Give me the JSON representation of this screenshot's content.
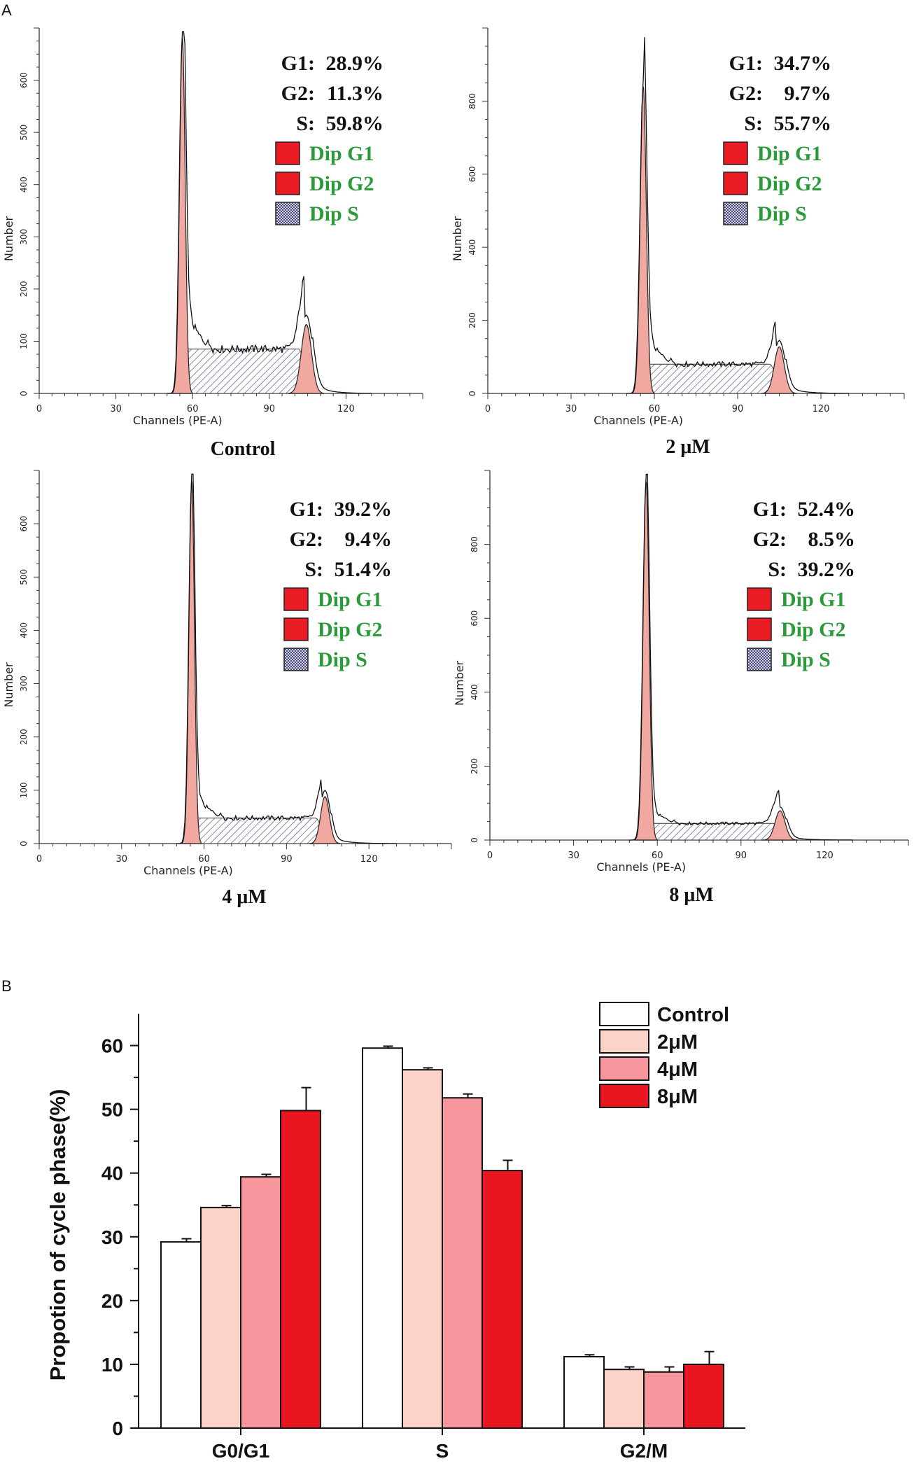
{
  "panel_labels": {
    "a": "A",
    "b": "B"
  },
  "chart_data": [
    {
      "type": "histogram",
      "condition_label": "Control",
      "xlabel": "Channels (PE-A)",
      "ylabel": "Number",
      "xlim": [
        0,
        150
      ],
      "xticks": [
        0,
        30,
        60,
        90,
        120
      ],
      "ylim": [
        0,
        700
      ],
      "yticks": [
        0,
        100,
        200,
        300,
        400,
        500,
        600
      ],
      "annotations": [
        {
          "label": "G1:",
          "value": "28.9%"
        },
        {
          "label": "G2:",
          "value": "11.3%"
        },
        {
          "label": "S:",
          "value": "59.8%"
        }
      ],
      "legend": [
        "Dip G1",
        "Dip G2",
        "Dip S"
      ],
      "peaks": {
        "g1_center": 56,
        "g1_sigma": 1.1,
        "g1_height": 680,
        "s_start": 57,
        "s_end": 103,
        "s_height": 85,
        "g2_center": 104.5,
        "g2_sigma": 2.0,
        "g2_height": 150
      }
    },
    {
      "type": "histogram",
      "condition_label": "2 μM",
      "xlabel": "Channels (PE-A)",
      "ylabel": "Number",
      "xlim": [
        0,
        150
      ],
      "xticks": [
        0,
        30,
        60,
        90,
        120
      ],
      "ylim": [
        0,
        1000
      ],
      "yticks": [
        0,
        200,
        400,
        600,
        800
      ],
      "annotations": [
        {
          "label": "G1:",
          "value": "34.7%"
        },
        {
          "label": "G2:",
          "value": "9.7%"
        },
        {
          "label": "S:",
          "value": "55.7%"
        }
      ],
      "legend": [
        "Dip G1",
        "Dip G2",
        "Dip S"
      ],
      "peaks": {
        "g1_center": 56,
        "g1_sigma": 1.1,
        "g1_height": 840,
        "s_start": 57,
        "s_end": 103,
        "s_height": 80,
        "g2_center": 105,
        "g2_sigma": 1.8,
        "g2_height": 145
      }
    },
    {
      "type": "histogram",
      "condition_label": "4 μM",
      "xlabel": "Channels (PE-A)",
      "ylabel": "Number",
      "xlim": [
        0,
        150
      ],
      "xticks": [
        0,
        30,
        60,
        90,
        120
      ],
      "ylim": [
        0,
        700
      ],
      "yticks": [
        0,
        100,
        200,
        300,
        400,
        500,
        600
      ],
      "annotations": [
        {
          "label": "G1:",
          "value": "39.2%"
        },
        {
          "label": "G2:",
          "value": "9.4%"
        },
        {
          "label": "S:",
          "value": "51.4%"
        }
      ],
      "legend": [
        "Dip G1",
        "Dip G2",
        "Dip S"
      ],
      "peaks": {
        "g1_center": 55.5,
        "g1_sigma": 1.0,
        "g1_height": 680,
        "s_start": 56,
        "s_end": 102,
        "s_height": 48,
        "g2_center": 104,
        "g2_sigma": 1.6,
        "g2_height": 100
      }
    },
    {
      "type": "histogram",
      "condition_label": "8 μM",
      "xlabel": "Channels (PE-A)",
      "ylabel": "Number",
      "xlim": [
        0,
        150
      ],
      "xticks": [
        0,
        30,
        60,
        90,
        120
      ],
      "ylim": [
        0,
        1000
      ],
      "yticks": [
        0,
        200,
        400,
        600,
        800
      ],
      "annotations": [
        {
          "label": "G1:",
          "value": "52.4%"
        },
        {
          "label": "G2:",
          "value": "8.5%"
        },
        {
          "label": "S:",
          "value": "39.2%"
        }
      ],
      "legend": [
        "Dip G1",
        "Dip G2",
        "Dip S"
      ],
      "peaks": {
        "g1_center": 56,
        "g1_sigma": 1.1,
        "g1_height": 970,
        "s_start": 57,
        "s_end": 103,
        "s_height": 45,
        "g2_center": 104,
        "g2_sigma": 1.8,
        "g2_height": 90
      }
    },
    {
      "type": "bar",
      "ylabel": "Propotion of cycle phase(%)",
      "ylim": [
        0,
        65
      ],
      "yticks": [
        0,
        10,
        20,
        30,
        40,
        50,
        60
      ],
      "categories": [
        "G0/G1",
        "S",
        "G2/M"
      ],
      "series": [
        {
          "name": "Control",
          "color": "#ffffff",
          "values": [
            29.2,
            59.6,
            11.2
          ],
          "errors": [
            0.5,
            0.3,
            0.3
          ]
        },
        {
          "name": "2μM",
          "color": "#fbd3c8",
          "values": [
            34.6,
            56.2,
            9.2
          ],
          "errors": [
            0.3,
            0.3,
            0.4
          ]
        },
        {
          "name": "4μM",
          "color": "#f7969c",
          "values": [
            39.4,
            51.8,
            8.8
          ],
          "errors": [
            0.4,
            0.6,
            0.8
          ]
        },
        {
          "name": "8μM",
          "color": "#e8161e",
          "values": [
            49.8,
            40.4,
            10.0
          ],
          "errors": [
            3.6,
            1.6,
            2.0
          ]
        }
      ]
    }
  ]
}
